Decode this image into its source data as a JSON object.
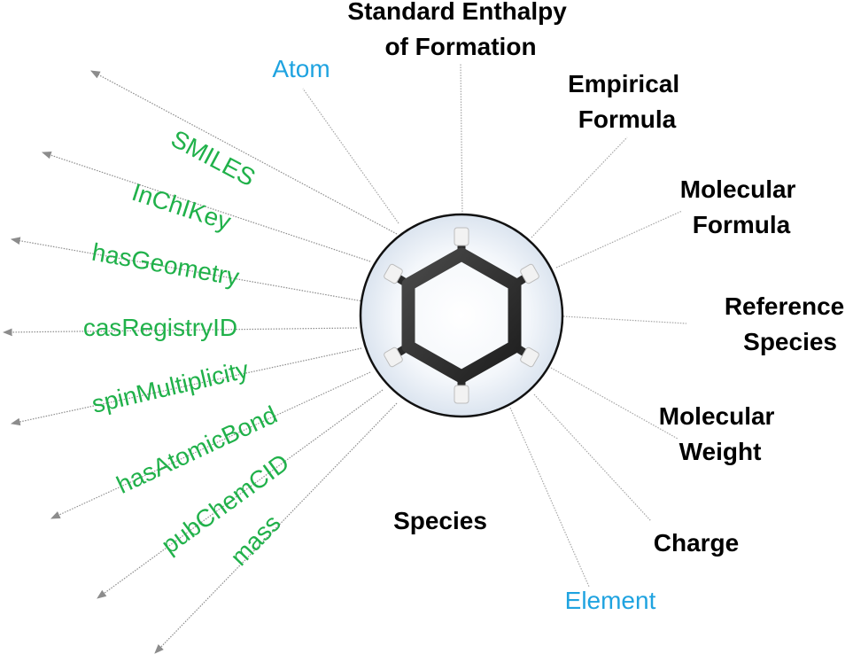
{
  "center_label": "Species",
  "data_properties": [
    {
      "id": "smiles",
      "text": "SMILES"
    },
    {
      "id": "inchikey",
      "text": "InChIKey"
    },
    {
      "id": "hasgeometry",
      "text": "hasGeometry"
    },
    {
      "id": "casregistryid",
      "text": "casRegistryID"
    },
    {
      "id": "spinmultiplicity",
      "text": "spinMultiplicity"
    },
    {
      "id": "hasatomicbond",
      "text": "hasAtomicBond"
    },
    {
      "id": "pubchemcid",
      "text": "pubChemCID"
    },
    {
      "id": "mass",
      "text": "mass"
    }
  ],
  "linked_classes": [
    {
      "id": "atom",
      "text": "Atom"
    },
    {
      "id": "element",
      "text": "Element"
    }
  ],
  "properties": [
    {
      "id": "standard-enthalpy",
      "lines": [
        "Standard Enthalpy",
        "of Formation"
      ]
    },
    {
      "id": "empirical-formula",
      "lines": [
        "Empirical",
        "Formula"
      ]
    },
    {
      "id": "molecular-formula",
      "lines": [
        "Molecular",
        "Formula"
      ]
    },
    {
      "id": "reference-species",
      "lines": [
        "Reference",
        "Species"
      ]
    },
    {
      "id": "molecular-weight",
      "lines": [
        "Molecular",
        "Weight"
      ]
    },
    {
      "id": "charge",
      "lines": [
        "Charge"
      ]
    }
  ],
  "colors": {
    "data_property": "#20b14a",
    "linked_class": "#1fa3e0",
    "property": "#000000",
    "molecule_bond": "#2b2b2b",
    "hydrogen": "#f2f2f2"
  }
}
